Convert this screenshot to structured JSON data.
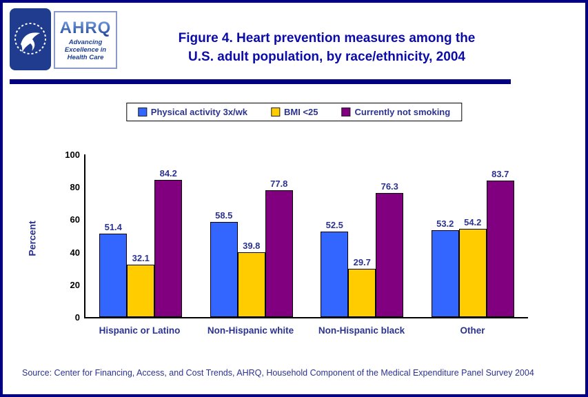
{
  "header": {
    "title_line1": "Figure 4. Heart prevention measures among the",
    "title_line2": "U.S. adult population, by race/ethnicity, 2004",
    "ahrq_logo": {
      "word": "AHRQ",
      "tagline_line1": "Advancing",
      "tagline_line2": "Excellence in",
      "tagline_line3": "Health Care"
    }
  },
  "chart_data": {
    "type": "bar",
    "title": "Figure 4. Heart prevention measures among the U.S. adult population, by race/ethnicity, 2004",
    "categories": [
      "Hispanic or Latino",
      "Non-Hispanic white",
      "Non-Hispanic black",
      "Other"
    ],
    "series": [
      {
        "name": "Physical activity 3x/wk",
        "color": "#3366FF",
        "values": [
          51.4,
          58.5,
          52.5,
          53.2
        ]
      },
      {
        "name": "BMI <25",
        "color": "#FFCC00",
        "values": [
          32.1,
          39.8,
          29.7,
          54.2
        ]
      },
      {
        "name": "Currently not smoking",
        "color": "#800080",
        "values": [
          84.2,
          77.8,
          76.3,
          83.7
        ]
      }
    ],
    "xlabel": "",
    "ylabel": "Percent",
    "ylim": [
      0,
      100
    ],
    "yticks": [
      0,
      20,
      40,
      60,
      80,
      100
    ],
    "grid": false,
    "legend_position": "top"
  },
  "source": "Source: Center for Financing, Access, and Cost Trends, AHRQ, Household Component of the Medical Expenditure Panel Survey 2004"
}
